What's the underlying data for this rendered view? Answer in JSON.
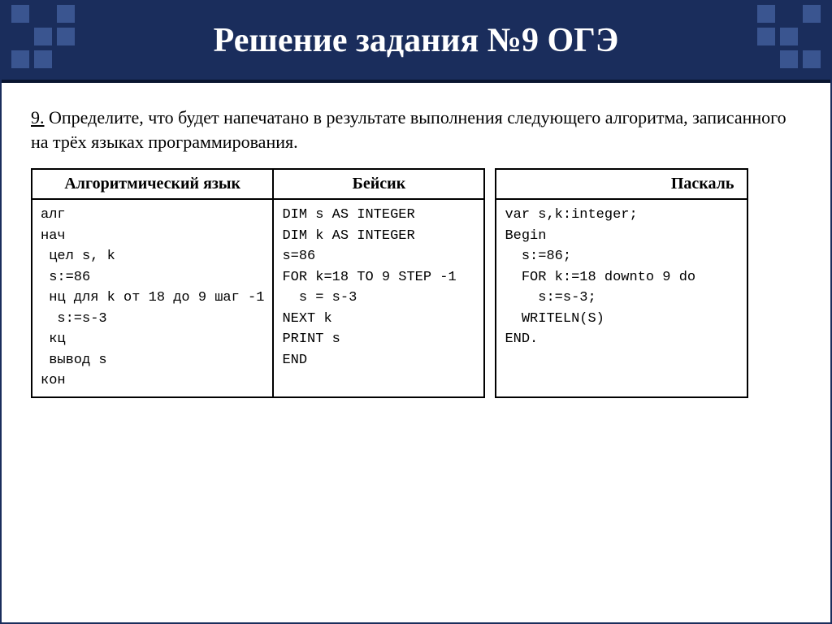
{
  "slide": {
    "title": "Решение задания №9 ОГЭ",
    "header_bg": "#1a2d5c",
    "accent_square": "#3a5590"
  },
  "question": {
    "number": "9.",
    "text": "Определите, что будет напечатано в результате выполнения следующего алгоритма, записанного на трёх языках программирования."
  },
  "table": {
    "headers": {
      "alg": "Алгоритмический язык",
      "basic": "Бейсик",
      "pascal": "Паскаль"
    },
    "code": {
      "alg": "алг\nнач\n цел s, k\n s:=86\n нц для k от 18 до 9 шаг -1\n  s:=s-3\n кц\n вывод s\nкон",
      "basic": "DIM s AS INTEGER\nDIM k AS INTEGER\ns=86\nFOR k=18 TO 9 STEP -1\n  s = s-3\nNEXT k\nPRINT s\nEND",
      "pascal": "var s,k:integer;\nBegin\n  s:=86;\n  FOR k:=18 downto 9 do\n    s:=s-3;\n  WRITELN(S)\nEND."
    }
  }
}
